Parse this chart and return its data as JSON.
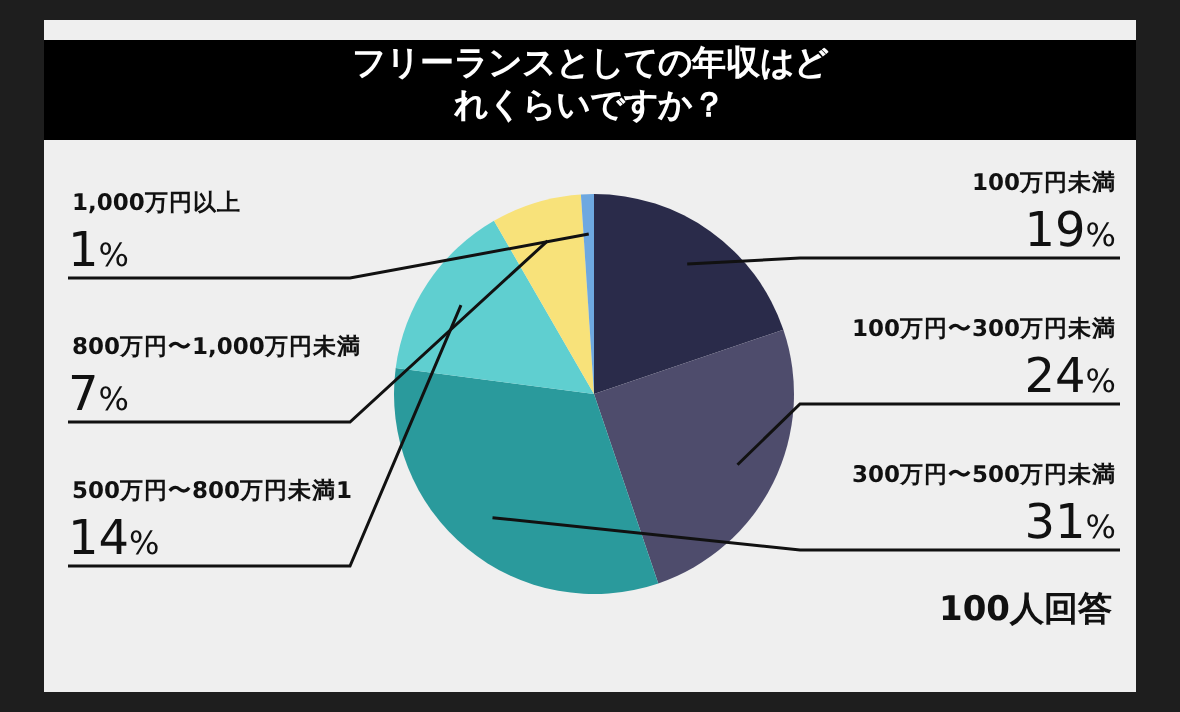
{
  "chart_data": {
    "type": "pie",
    "title": "フリーランスとしての年収はどれくらいですか？",
    "categories": [
      "100万円未満",
      "100万円〜300万円未満",
      "300万円〜500万円未満",
      "500万円〜800万円未満1",
      "800万円〜1,000万円未満",
      "1,000万円以上"
    ],
    "values": [
      19,
      24,
      31,
      14,
      7,
      1
    ],
    "value_labels": [
      "19%",
      "24%",
      "31%",
      "14%",
      "7%",
      "1%"
    ],
    "colors": [
      "#2a2b4a",
      "#4e4c6c",
      "#2a9a9c",
      "#5fcfd0",
      "#f8e27a",
      "#6ea8e0"
    ],
    "annotations": [
      "100人回答"
    ]
  }
}
